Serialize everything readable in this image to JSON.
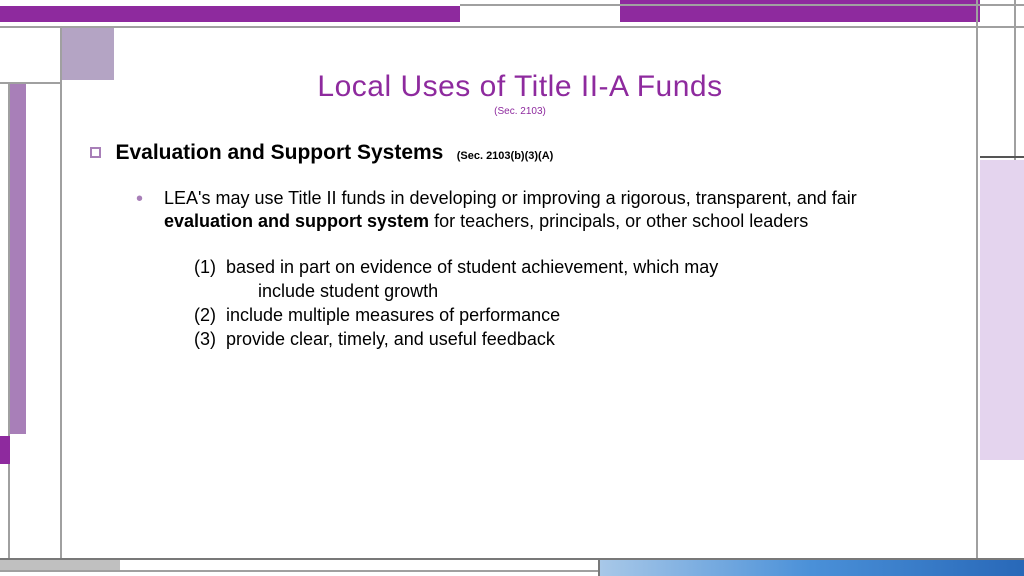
{
  "colors": {
    "accent_purple": "#8e2a9e",
    "light_purple": "#a87fb8",
    "lavender_fill": "#e4d4ee",
    "square_fill": "#b4a4c4",
    "gray_line": "#a0a0a0",
    "dark_line": "#787878",
    "blue_grad_start": "#a8c8e8",
    "blue_grad_end": "#2868b8",
    "text": "#000000",
    "title_color": "#8e2a9e"
  },
  "slide": {
    "title": "Local Uses of Title II-A Funds",
    "title_cite": "(Sec. 2103)",
    "section_heading": "Evaluation and Support Systems",
    "section_cite": "(Sec. 2103(b)(3)(A)",
    "body_pre": "LEA's may use Title II funds in developing or improving a rigorous, transparent, and fair ",
    "body_bold": "evaluation and support system",
    "body_post": " for teachers, principals, or other school leaders",
    "items": [
      {
        "n": "(1)",
        "text_a": "based in part on evidence of student achievement, which may",
        "text_b": "include student growth"
      },
      {
        "n": "(2)",
        "text_a": "include multiple measures of performance",
        "text_b": ""
      },
      {
        "n": "(3)",
        "text_a": "provide clear, timely, and useful feedback",
        "text_b": ""
      }
    ]
  },
  "typography": {
    "title_fontsize": 30,
    "body_fontsize": 18,
    "cite_fontsize": 11,
    "font_family": "Century Gothic"
  }
}
